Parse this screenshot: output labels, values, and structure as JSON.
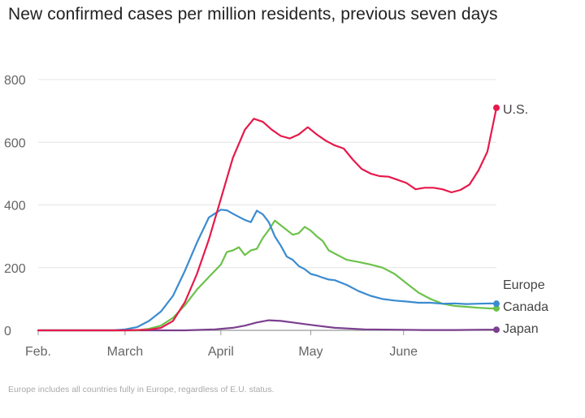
{
  "title": "New confirmed cases per million residents, previous seven days",
  "footnote": "Europe includes all countries fully in Europe, regardless of E.U. status.",
  "chart_data": {
    "type": "line",
    "title": "New confirmed cases per million residents, previous seven days",
    "xlabel": "",
    "ylabel": "",
    "ylim": [
      0,
      800
    ],
    "yticks": [
      0,
      200,
      400,
      600,
      800
    ],
    "ytick_labels": [
      "0",
      "200",
      "400",
      "600",
      "800"
    ],
    "xlim": [
      1,
      154
    ],
    "xticks": [
      1,
      30,
      62,
      92,
      123
    ],
    "xtick_labels": [
      "Feb.",
      "March",
      "April",
      "May",
      "June"
    ],
    "grid": true,
    "legend": "direct labels at line ends (right)",
    "series": [
      {
        "name": "U.S.",
        "color": "#e6194b",
        "x": [
          1,
          30,
          38,
          42,
          46,
          50,
          54,
          58,
          62,
          66,
          70,
          73,
          76,
          79,
          82,
          85,
          88,
          91,
          94,
          97,
          100,
          103,
          106,
          109,
          112,
          115,
          118,
          121,
          124,
          127,
          130,
          133,
          136,
          139,
          142,
          145,
          148,
          151,
          154
        ],
        "y": [
          0,
          0,
          2,
          8,
          30,
          90,
          180,
          290,
          420,
          550,
          640,
          675,
          665,
          640,
          620,
          612,
          625,
          648,
          625,
          605,
          590,
          580,
          545,
          515,
          500,
          492,
          490,
          480,
          470,
          450,
          455,
          455,
          450,
          440,
          448,
          465,
          510,
          570,
          710
        ]
      },
      {
        "name": "Europe",
        "color": "#3b8bd0",
        "x": [
          1,
          26,
          30,
          34,
          38,
          42,
          46,
          50,
          54,
          58,
          62,
          64,
          66,
          68,
          70,
          72,
          74,
          76,
          78,
          80,
          82,
          84,
          86,
          88,
          90,
          92,
          94,
          96,
          98,
          100,
          104,
          108,
          112,
          116,
          120,
          124,
          128,
          132,
          136,
          140,
          144,
          148,
          152,
          154
        ],
        "y": [
          0,
          0,
          3,
          10,
          30,
          60,
          110,
          190,
          280,
          360,
          385,
          383,
          372,
          362,
          352,
          345,
          382,
          370,
          345,
          300,
          270,
          235,
          225,
          205,
          195,
          180,
          175,
          168,
          162,
          160,
          145,
          125,
          110,
          100,
          95,
          92,
          88,
          88,
          85,
          86,
          84,
          85,
          86,
          85
        ]
      },
      {
        "name": "Canada",
        "color": "#6cc24a",
        "x": [
          1,
          34,
          38,
          42,
          46,
          50,
          54,
          58,
          62,
          64,
          66,
          68,
          70,
          72,
          74,
          76,
          78,
          80,
          82,
          84,
          86,
          88,
          90,
          92,
          94,
          96,
          98,
          100,
          102,
          104,
          108,
          112,
          116,
          120,
          124,
          128,
          132,
          136,
          140,
          144,
          148,
          152,
          154
        ],
        "y": [
          0,
          0,
          5,
          15,
          40,
          80,
          130,
          170,
          210,
          250,
          255,
          265,
          240,
          255,
          260,
          295,
          320,
          350,
          335,
          320,
          305,
          310,
          330,
          318,
          300,
          285,
          255,
          245,
          235,
          225,
          218,
          210,
          200,
          180,
          150,
          120,
          100,
          85,
          78,
          75,
          72,
          70,
          70
        ]
      },
      {
        "name": "Japan",
        "color": "#7b3f8f",
        "x": [
          1,
          50,
          60,
          66,
          70,
          74,
          78,
          82,
          86,
          90,
          94,
          100,
          110,
          120,
          130,
          140,
          150,
          154
        ],
        "y": [
          0,
          0,
          3,
          8,
          15,
          25,
          32,
          30,
          25,
          20,
          15,
          8,
          3,
          2,
          1,
          1,
          2,
          2
        ]
      }
    ]
  }
}
